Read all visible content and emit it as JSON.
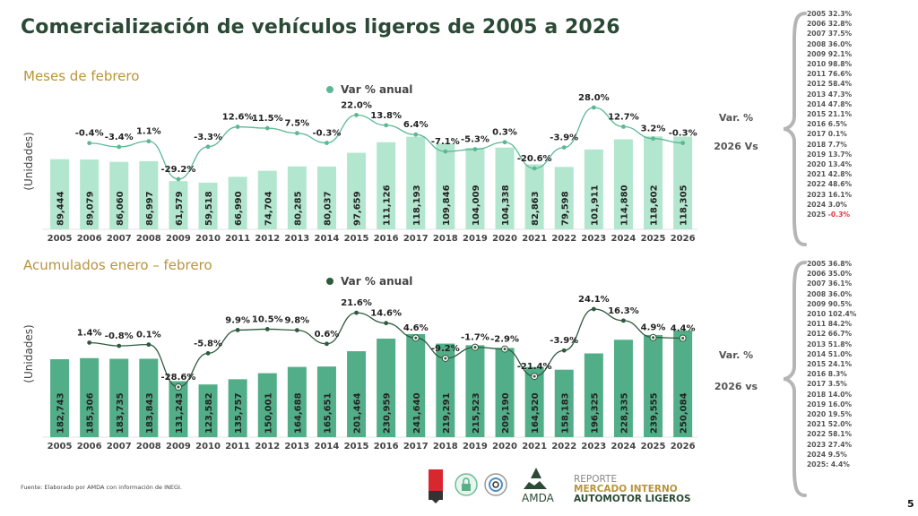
{
  "title": "Comercialización de vehículos ligeros de 2005 a 2026",
  "footer": {
    "source": "Fuente: Elaborado por AMDA con información de INEGI.",
    "page_number": "5",
    "logo": {
      "brand": "AMDA",
      "line1": "REPORTE",
      "line2": "MERCADO INTERNO",
      "line3": "AUTOMOTOR LIGEROS"
    }
  },
  "colors": {
    "bar_top": "#b3e6cf",
    "line_top": "#5cb894",
    "bar_bottom": "#52ae88",
    "line_bottom": "#2f5a3e",
    "negative": "#e0383e"
  },
  "chart_data": [
    {
      "type": "bar",
      "title": "Meses de febrero",
      "ylabel": "(Unidades)",
      "xlabel": "",
      "legend": "Var % anual",
      "legend_position": "top-center",
      "categories": [
        "2005",
        "2006",
        "2007",
        "2008",
        "2009",
        "2010",
        "2011",
        "2012",
        "2013",
        "2014",
        "2015",
        "2016",
        "2017",
        "2018",
        "2019",
        "2020",
        "2021",
        "2022",
        "2023",
        "2024",
        "2025",
        "2026"
      ],
      "values": [
        89444,
        89079,
        86060,
        86997,
        61579,
        59518,
        66990,
        74704,
        80285,
        80037,
        97659,
        111126,
        118193,
        109846,
        104009,
        104338,
        82863,
        79598,
        101911,
        114880,
        118602,
        118305
      ],
      "value_labels": [
        "89,444",
        "89,079",
        "86,060",
        "86,997",
        "61,579",
        "59,518",
        "66,990",
        "74,704",
        "80,285",
        "80,037",
        "97,659",
        "111,126",
        "118,193",
        "109,846",
        "104,009",
        "104,338",
        "82,863",
        "79,598",
        "101,911",
        "114,880",
        "118,602",
        "118,305"
      ],
      "line_series": {
        "name": "Var % anual",
        "values": [
          null,
          -0.4,
          -3.4,
          1.1,
          -29.2,
          -3.3,
          12.6,
          11.5,
          7.5,
          -0.3,
          22.0,
          13.8,
          6.4,
          -7.1,
          -5.3,
          0.3,
          -20.6,
          -3.9,
          28.0,
          12.7,
          3.2,
          -0.3
        ],
        "labels": [
          "",
          "-0.4%",
          "-3.4%",
          "1.1%",
          "-29.2%",
          "-3.3%",
          "12.6%",
          "11.5%",
          "7.5%",
          "-0.3%",
          "22.0%",
          "13.8%",
          "6.4%",
          "-7.1%",
          "-5.3%",
          "0.3%",
          "-20.6%",
          "-3.9%",
          "28.0%",
          "12.7%",
          "3.2%",
          "-0.3%"
        ]
      },
      "grid": false,
      "side_panel": {
        "label1": "Var. %",
        "label2": "2026 Vs",
        "items": [
          {
            "year": "2005",
            "value": "32.3%"
          },
          {
            "year": "2006",
            "value": "32.8%"
          },
          {
            "year": "2007",
            "value": "37.5%"
          },
          {
            "year": "2008",
            "value": "36.0%"
          },
          {
            "year": "2009",
            "value": "92.1%"
          },
          {
            "year": "2010",
            "value": "98.8%"
          },
          {
            "year": "2011",
            "value": "76.6%"
          },
          {
            "year": "2012",
            "value": "58.4%"
          },
          {
            "year": "2013",
            "value": "47.3%"
          },
          {
            "year": "2014",
            "value": "47.8%"
          },
          {
            "year": "2015",
            "value": "21.1%"
          },
          {
            "year": "2016",
            "value": "6.5%"
          },
          {
            "year": "2017",
            "value": "0.1%"
          },
          {
            "year": "2018",
            "value": "7.7%"
          },
          {
            "year": "2019",
            "value": "13.7%"
          },
          {
            "year": "2020",
            "value": "13.4%"
          },
          {
            "year": "2021",
            "value": "42.8%"
          },
          {
            "year": "2022",
            "value": "48.6%"
          },
          {
            "year": "2023",
            "value": "16.1%"
          },
          {
            "year": "2024",
            "value": "3.0%"
          },
          {
            "year": "2025",
            "value": "-0.3%",
            "negative": true
          }
        ]
      }
    },
    {
      "type": "bar",
      "title": "Acumulados enero – febrero",
      "ylabel": "(Unidades)",
      "xlabel": "",
      "legend": "Var % anual",
      "legend_position": "top-center",
      "categories": [
        "2005",
        "2006",
        "2007",
        "2008",
        "2009",
        "2010",
        "2011",
        "2012",
        "2013",
        "2014",
        "2015",
        "2016",
        "2017",
        "2018",
        "2019",
        "2020",
        "2021",
        "2022",
        "2023",
        "2024",
        "2025",
        "2026"
      ],
      "values": [
        182743,
        185306,
        183735,
        183843,
        131243,
        123582,
        135757,
        150001,
        164688,
        165651,
        201464,
        230959,
        241640,
        219291,
        215523,
        209190,
        164520,
        158183,
        196325,
        228335,
        239555,
        250084
      ],
      "value_labels": [
        "182,743",
        "185,306",
        "183,735",
        "183,843",
        "131,243",
        "123,582",
        "135,757",
        "150,001",
        "164,688",
        "165,651",
        "201,464",
        "230,959",
        "241,640",
        "219,291",
        "215,523",
        "209,190",
        "164,520",
        "158,183",
        "196,325",
        "228,335",
        "239,555",
        "250,084"
      ],
      "line_series": {
        "name": "Var % anual",
        "values": [
          null,
          1.4,
          -0.8,
          0.1,
          -28.6,
          -5.8,
          9.9,
          10.5,
          9.8,
          0.6,
          21.6,
          14.6,
          4.6,
          -9.2,
          -1.7,
          -2.9,
          -21.4,
          -3.9,
          24.1,
          16.3,
          4.9,
          4.4
        ],
        "labels": [
          "",
          "1.4%",
          "-0.8%",
          "0.1%",
          "-28.6%",
          "-5.8%",
          "9.9%",
          "10.5%",
          "9.8%",
          "0.6%",
          "21.6%",
          "14.6%",
          "4.6%",
          "-9.2%",
          "-1.7%",
          "-2.9%",
          "-21.4%",
          "-3.9%",
          "24.1%",
          "16.3%",
          "4.9%",
          "4.4%"
        ]
      },
      "grid": false,
      "side_panel": {
        "label1": "Var. %",
        "label2": "2026 vs",
        "items": [
          {
            "year": "2005",
            "value": "36.8%"
          },
          {
            "year": "2006",
            "value": "35.0%"
          },
          {
            "year": "2007",
            "value": "36.1%"
          },
          {
            "year": "2008",
            "value": "36.0%"
          },
          {
            "year": "2009",
            "value": "90.5%"
          },
          {
            "year": "2010",
            "value": "102.4%"
          },
          {
            "year": "2011",
            "value": "84.2%"
          },
          {
            "year": "2012",
            "value": "66.7%"
          },
          {
            "year": "2013",
            "value": "51.8%"
          },
          {
            "year": "2014",
            "value": "51.0%"
          },
          {
            "year": "2015",
            "value": "24.1%"
          },
          {
            "year": "2016",
            "value": "8.3%"
          },
          {
            "year": "2017",
            "value": "3.5%"
          },
          {
            "year": "2018",
            "value": "14.0%"
          },
          {
            "year": "2019",
            "value": "16.0%"
          },
          {
            "year": "2020",
            "value": "19.5%"
          },
          {
            "year": "2021",
            "value": "52.0%"
          },
          {
            "year": "2022",
            "value": "58.1%"
          },
          {
            "year": "2023",
            "value": "27.4%"
          },
          {
            "year": "2024",
            "value": "9.5%"
          },
          {
            "year": "2025:",
            "value": "4.4%"
          }
        ]
      }
    }
  ]
}
